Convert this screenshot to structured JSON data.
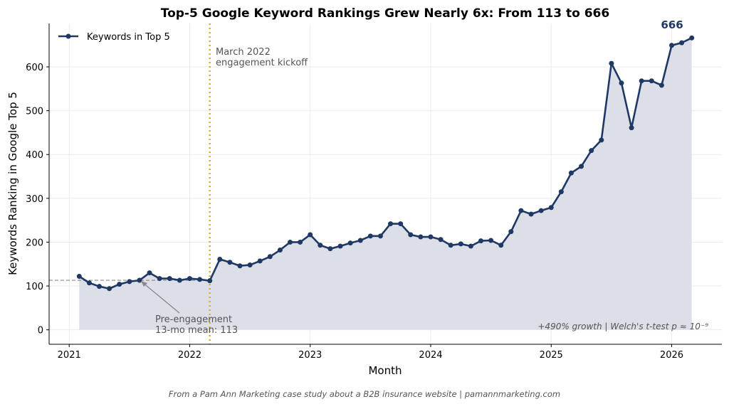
{
  "chart_data": {
    "type": "line",
    "title": "Top-5 Google Keyword Rankings Grew Nearly 6x: From 113 to 666",
    "xlabel": "Month",
    "ylabel": "Keywords Ranking in Google Top 5",
    "xlim": [
      "2020-11",
      "2026-06"
    ],
    "ylim": [
      -33,
      699
    ],
    "x_ticks": [
      "2021",
      "2022",
      "2023",
      "2024",
      "2025",
      "2026"
    ],
    "y_ticks": [
      0,
      100,
      200,
      300,
      400,
      500,
      600
    ],
    "grid": true,
    "legend_position": "top-left",
    "series": [
      {
        "name": "Keywords in Top 5",
        "color": "#1f3864",
        "fill": "#dcdfe7",
        "x": [
          "2021-02",
          "2021-03",
          "2021-04",
          "2021-05",
          "2021-06",
          "2021-07",
          "2021-08",
          "2021-09",
          "2021-10",
          "2021-11",
          "2021-12",
          "2022-01",
          "2022-02",
          "2022-03",
          "2022-04",
          "2022-05",
          "2022-06",
          "2022-07",
          "2022-08",
          "2022-09",
          "2022-10",
          "2022-11",
          "2022-12",
          "2023-01",
          "2023-02",
          "2023-03",
          "2023-04",
          "2023-05",
          "2023-06",
          "2023-07",
          "2023-08",
          "2023-09",
          "2023-10",
          "2023-11",
          "2023-12",
          "2024-01",
          "2024-02",
          "2024-03",
          "2024-04",
          "2024-05",
          "2024-06",
          "2024-07",
          "2024-08",
          "2024-09",
          "2024-10",
          "2024-11",
          "2024-12",
          "2025-01",
          "2025-02",
          "2025-03",
          "2025-04",
          "2025-05",
          "2025-06",
          "2025-07",
          "2025-08",
          "2025-09",
          "2025-10",
          "2025-11",
          "2025-12",
          "2026-01",
          "2026-02",
          "2026-03"
        ],
        "values": [
          122,
          107,
          99,
          94,
          104,
          110,
          113,
          130,
          117,
          117,
          113,
          117,
          115,
          112,
          161,
          154,
          146,
          148,
          157,
          167,
          182,
          200,
          200,
          217,
          193,
          185,
          191,
          198,
          204,
          214,
          214,
          242,
          242,
          217,
          212,
          212,
          206,
          193,
          196,
          191,
          203,
          204,
          193,
          224,
          272,
          264,
          272,
          279,
          315,
          358,
          373,
          409,
          433,
          608,
          563,
          461,
          568,
          568,
          558,
          649,
          655,
          666
        ]
      }
    ],
    "annotations": {
      "kickoff": {
        "x": "2022-03",
        "text_line1": "March 2022",
        "text_line2": "engagement kickoff",
        "color": "#e8a820"
      },
      "baseline": {
        "y": 113,
        "text_line1": "Pre-engagement",
        "text_line2": "13-mo mean: 113"
      },
      "peak_label": "666",
      "stats": "+490% growth  |  Welch's t-test p ≈ 10⁻⁹"
    }
  },
  "footer": "From a Pam Ann Marketing case study about a B2B insurance website  |  pamannmarketing.com"
}
